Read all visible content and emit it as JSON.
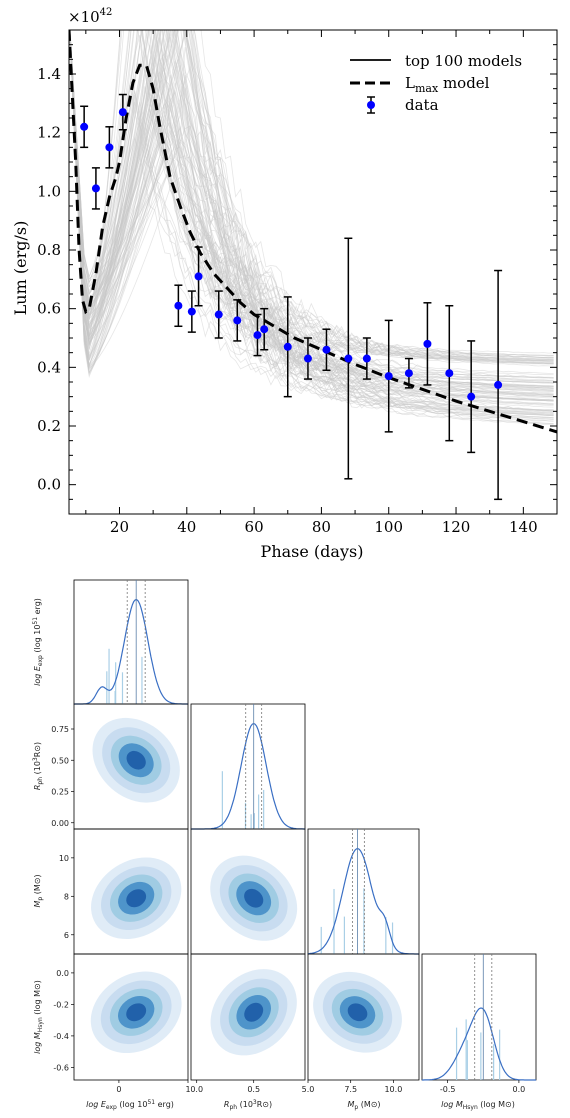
{
  "chart_data": [
    {
      "type": "line",
      "xlabel": "Phase (days)",
      "ylabel": "Lum (erg/s)",
      "y_multiplier_label": "×10",
      "y_multiplier_exp": "42",
      "xlim": [
        5,
        150
      ],
      "ylim": [
        -0.1,
        1.55
      ],
      "xticks": [
        20,
        40,
        60,
        80,
        100,
        120,
        140
      ],
      "yticks": [
        0.0,
        0.2,
        0.4,
        0.6,
        0.8,
        1.0,
        1.2,
        1.4
      ],
      "legend_position": "top-right",
      "legend": {
        "top_models": "top 100 models",
        "lmax_prefix": "L",
        "lmax_sub": "max",
        "lmax_suffix": " model",
        "data": "data"
      },
      "colors": {
        "data": "#0000ff",
        "model": "#000000",
        "ensemble": "#c8c8c8"
      },
      "lmax_model": {
        "x": [
          5,
          7,
          8,
          9,
          10,
          11,
          13,
          15,
          17,
          19,
          20,
          22,
          24,
          26,
          28,
          30,
          32,
          35,
          38,
          41,
          44,
          48,
          52,
          56,
          60,
          66,
          72,
          80,
          90,
          100,
          110,
          120,
          130,
          140,
          150
        ],
        "y": [
          1.55,
          1.1,
          0.8,
          0.63,
          0.59,
          0.6,
          0.72,
          0.88,
          0.98,
          1.05,
          1.1,
          1.25,
          1.37,
          1.43,
          1.43,
          1.35,
          1.22,
          1.05,
          0.95,
          0.86,
          0.79,
          0.72,
          0.67,
          0.62,
          0.58,
          0.54,
          0.5,
          0.46,
          0.41,
          0.365,
          0.325,
          0.285,
          0.25,
          0.215,
          0.18
        ]
      },
      "data": {
        "x": [
          9.5,
          13,
          17,
          21,
          37.5,
          41.5,
          43.5,
          49.5,
          55,
          61,
          63,
          70,
          76,
          81.5,
          88,
          93.5,
          100,
          106,
          111.5,
          118,
          124.5,
          132.5
        ],
        "y": [
          1.22,
          1.01,
          1.15,
          1.27,
          0.61,
          0.59,
          0.71,
          0.58,
          0.56,
          0.51,
          0.53,
          0.47,
          0.43,
          0.46,
          0.43,
          0.43,
          0.37,
          0.38,
          0.48,
          0.38,
          0.3,
          0.34
        ],
        "err": [
          0.07,
          0.07,
          0.07,
          0.06,
          0.07,
          0.07,
          0.1,
          0.08,
          0.07,
          0.07,
          0.07,
          0.17,
          0.07,
          0.07,
          0.41,
          0.07,
          0.19,
          0.05,
          0.14,
          0.23,
          0.19,
          0.39
        ]
      }
    },
    {
      "type": "corner",
      "colors": {
        "kde": "#3a6fc4",
        "hist": "#a9cfe6",
        "contours": [
          "#deebf7",
          "#c6dbef",
          "#9ecae1",
          "#4a90c8",
          "#1f5ea8"
        ]
      },
      "parameters": [
        {
          "label": "log E_exp (log 10^51 erg)",
          "range": [
            -0.65,
            1.0
          ],
          "ticks": [
            "0",
            "1"
          ],
          "tick_values": [
            0,
            1
          ],
          "median": 0.25,
          "q_low": 0.12,
          "q_high": 0.38
        },
        {
          "label": "R_ph (10^3 R_⊙)",
          "range": [
            -0.05,
            0.95
          ],
          "ticks": [
            "0.00",
            "0.25",
            "0.50",
            "0.75"
          ],
          "tick_values": [
            0.0,
            0.25,
            0.5,
            0.75
          ],
          "x_ticks": [
            "0.0",
            "0.5"
          ],
          "x_tick_values": [
            0.0,
            0.5
          ],
          "median": 0.5,
          "q_low": 0.43,
          "q_high": 0.57
        },
        {
          "label": "M_p (M_⊙)",
          "range": [
            5.0,
            11.5
          ],
          "ticks": [
            "6",
            "8",
            "10"
          ],
          "tick_values": [
            6,
            8,
            10
          ],
          "x_ticks": [
            "5.0",
            "7.5",
            "10.0"
          ],
          "x_tick_values": [
            5.0,
            7.5,
            10.0
          ],
          "median": 7.9,
          "q_low": 7.6,
          "q_high": 8.3
        },
        {
          "label": "log M_Hsyn (log M_⊙)",
          "range": [
            -0.68,
            0.12
          ],
          "ticks": [
            "0.0",
            "-0.2",
            "-0.4",
            "-0.6"
          ],
          "tick_values": [
            0.0,
            -0.2,
            -0.4,
            -0.6
          ],
          "x_ticks": [
            "-0.5",
            "0.0"
          ],
          "x_tick_values": [
            -0.5,
            0.0
          ],
          "median": -0.25,
          "q_low": -0.31,
          "q_high": -0.19
        }
      ],
      "axis_labels": {
        "e_exp": {
          "pre": "log E",
          "sub": "exp",
          "post": " (log 10",
          "sup": "51",
          "end": " erg)"
        },
        "r_ph": {
          "pre": "R",
          "sub": "ph",
          "post": " (10",
          "sup": "3",
          "end": "R⊙)"
        },
        "m_p": {
          "pre": "M",
          "sub": "p",
          "end": " (M⊙)"
        },
        "m_h": {
          "pre": "log M",
          "sub": "Hsyn",
          "end": " (log M⊙)"
        }
      }
    }
  ]
}
